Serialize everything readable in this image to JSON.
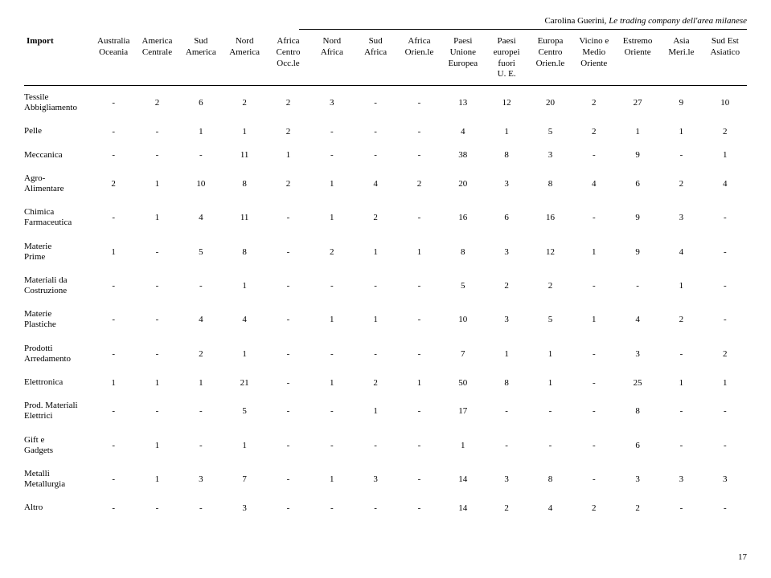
{
  "header": {
    "author": "Carolina Guerini, ",
    "title": "Le trading company dell'area milanese"
  },
  "table": {
    "corner": "Import",
    "columns": [
      "Australia\nOceania",
      "America\nCentrale",
      "Sud\nAmerica",
      "Nord\nAmerica",
      "Africa\nCentro\nOcc.le",
      "Nord\nAfrica",
      "Sud\nAfrica",
      "Africa\nOrien.le",
      "Paesi\nUnione\nEuropea",
      "Paesi\neuropei\nfuori\nU. E.",
      "Europa\nCentro\nOrien.le",
      "Vicino e\nMedio\nOriente",
      "Estremo\nOriente",
      "Asia\nMeri.le",
      "Sud Est\nAsiatico"
    ],
    "rows": [
      {
        "label": "Tessile\nAbbigliamento",
        "cells": [
          "-",
          "2",
          "6",
          "2",
          "2",
          "3",
          "-",
          "-",
          "13",
          "12",
          "20",
          "2",
          "27",
          "9",
          "10"
        ]
      },
      {
        "label": "Pelle",
        "cells": [
          "-",
          "-",
          "1",
          "1",
          "2",
          "-",
          "-",
          "-",
          "4",
          "1",
          "5",
          "2",
          "1",
          "1",
          "2"
        ]
      },
      {
        "label": "Meccanica",
        "cells": [
          "-",
          "-",
          "-",
          "11",
          "1",
          "-",
          "-",
          "-",
          "38",
          "8",
          "3",
          "-",
          "9",
          "-",
          "1"
        ]
      },
      {
        "label": "Agro-\nAlimentare",
        "cells": [
          "2",
          "1",
          "10",
          "8",
          "2",
          "1",
          "4",
          "2",
          "20",
          "3",
          "8",
          "4",
          "6",
          "2",
          "4"
        ]
      },
      {
        "label": "Chimica\nFarmaceutica",
        "cells": [
          "-",
          "1",
          "4",
          "11",
          "-",
          "1",
          "2",
          "-",
          "16",
          "6",
          "16",
          "-",
          "9",
          "3",
          "-"
        ]
      },
      {
        "label": "Materie\nPrime",
        "cells": [
          "1",
          "-",
          "5",
          "8",
          "-",
          "2",
          "1",
          "1",
          "8",
          "3",
          "12",
          "1",
          "9",
          "4",
          "-"
        ]
      },
      {
        "label": "Materiali da\nCostruzione",
        "cells": [
          "-",
          "-",
          "-",
          "1",
          "-",
          "-",
          "-",
          "-",
          "5",
          "2",
          "2",
          "-",
          "-",
          "1",
          "-"
        ]
      },
      {
        "label": "Materie\nPlastiche",
        "cells": [
          "-",
          "-",
          "4",
          "4",
          "-",
          "1",
          "1",
          "-",
          "10",
          "3",
          "5",
          "1",
          "4",
          "2",
          "-"
        ]
      },
      {
        "label": "Prodotti\nArredamento",
        "cells": [
          "-",
          "-",
          "2",
          "1",
          "-",
          "-",
          "-",
          "-",
          "7",
          "1",
          "1",
          "-",
          "3",
          "-",
          "2"
        ]
      },
      {
        "label": "Elettronica",
        "cells": [
          "1",
          "1",
          "1",
          "21",
          "-",
          "1",
          "2",
          "1",
          "50",
          "8",
          "1",
          "-",
          "25",
          "1",
          "1"
        ]
      },
      {
        "label": "Prod. Materiali\nElettrici",
        "cells": [
          "-",
          "-",
          "-",
          "5",
          "-",
          "-",
          "1",
          "-",
          "17",
          "-",
          "-",
          "-",
          "8",
          "-",
          "-"
        ]
      },
      {
        "label": "Gift e\nGadgets",
        "cells": [
          "-",
          "1",
          "-",
          "1",
          "-",
          "-",
          "-",
          "-",
          "1",
          "-",
          "-",
          "-",
          "6",
          "-",
          "-"
        ]
      },
      {
        "label": "Metalli\nMetallurgia",
        "cells": [
          "-",
          "1",
          "3",
          "7",
          "-",
          "1",
          "3",
          "-",
          "14",
          "3",
          "8",
          "-",
          "3",
          "3",
          "3"
        ]
      },
      {
        "label": "Altro",
        "cells": [
          "-",
          "-",
          "-",
          "3",
          "-",
          "-",
          "-",
          "-",
          "14",
          "2",
          "4",
          "2",
          "2",
          "-",
          "-"
        ]
      }
    ]
  },
  "page_number": "17"
}
